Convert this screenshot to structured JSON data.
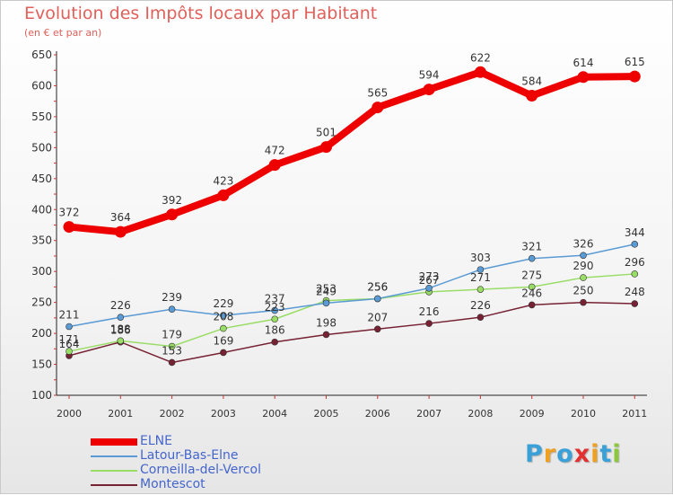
{
  "title": "Evolution des Impôts locaux par Habitant",
  "subtitle": "(en € et par an)",
  "logo": {
    "letters": [
      "P",
      "r",
      "o",
      "x",
      "i",
      "t",
      "i"
    ],
    "colors": [
      "#3aa0d8",
      "#f0a020",
      "#3aa0d8",
      "#e23030",
      "#f0a020",
      "#3aa0d8",
      "#8cc83c"
    ]
  },
  "chart_data": {
    "type": "line",
    "x": [
      "2000",
      "2001",
      "2002",
      "2003",
      "2004",
      "2005",
      "2006",
      "2007",
      "2008",
      "2009",
      "2010",
      "2011"
    ],
    "ylim": [
      100,
      650
    ],
    "yticks": [
      "100",
      "150",
      "200",
      "250",
      "300",
      "350",
      "400",
      "450",
      "500",
      "550",
      "600",
      "650"
    ],
    "grid": false,
    "legend_placement": "bottom-left",
    "series": [
      {
        "name": "ELNE",
        "color": "#ee0000",
        "values": [
          372,
          364,
          392,
          423,
          472,
          501,
          565,
          594,
          622,
          584,
          614,
          615
        ]
      },
      {
        "name": "Latour-Bas-Elne",
        "color": "#5b9bd5",
        "values": [
          211,
          226,
          239,
          229,
          237,
          249,
          256,
          273,
          303,
          321,
          326,
          344
        ]
      },
      {
        "name": "Corneilla-del-Vercol",
        "color": "#99dd66",
        "values": [
          171,
          188,
          179,
          208,
          223,
          253,
          256,
          267,
          271,
          275,
          290,
          296
        ]
      },
      {
        "name": "Montescot",
        "color": "#772233",
        "values": [
          164,
          186,
          153,
          169,
          186,
          198,
          207,
          216,
          226,
          246,
          250,
          248
        ]
      }
    ]
  }
}
